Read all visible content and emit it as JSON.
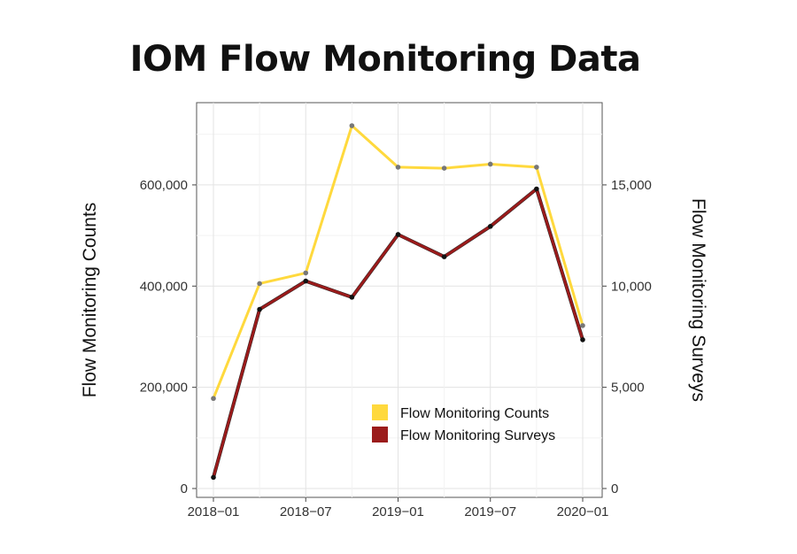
{
  "chart_data": {
    "type": "line",
    "title": "IOM Flow Monitoring Data",
    "x": [
      "2018-01",
      "2018-04",
      "2018-07",
      "2018-10",
      "2019-01",
      "2019-04",
      "2019-07",
      "2019-10",
      "2020-01"
    ],
    "xticks": [
      "2018−01",
      "2018−07",
      "2019−01",
      "2019−07",
      "2020−01"
    ],
    "xlim": [
      "2018-01",
      "2020-01"
    ],
    "ylabel_left": "Flow Monitoring Counts",
    "ylabel_right": "Flow Monitoring Surveys",
    "yticks_left": [
      "0",
      "200,000",
      "400,000",
      "600,000"
    ],
    "yticks_right": [
      "0",
      "5,000",
      "10,000",
      "15,000"
    ],
    "ylim_left": [
      0,
      780000
    ],
    "ylim_right": [
      0,
      19500
    ],
    "grid": true,
    "legend_position": "bottom-right",
    "series": [
      {
        "name": "Flow Monitoring Counts",
        "axis": "left",
        "color": "#FFD93D",
        "values": [
          178000,
          405000,
          426000,
          717000,
          635000,
          633000,
          641000,
          635000,
          322000
        ]
      },
      {
        "name": "Flow Monitoring Surveys",
        "axis": "right",
        "color": "#9B1B1B",
        "values": [
          550,
          8850,
          10250,
          9450,
          12550,
          11450,
          12950,
          14800,
          7350
        ]
      }
    ]
  }
}
